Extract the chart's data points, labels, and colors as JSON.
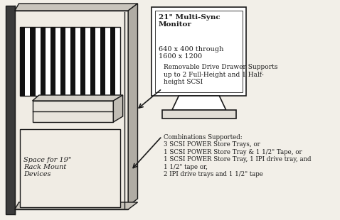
{
  "bg_color": "#f2efe8",
  "monitor_text1": "21\" Multi-Sync\nMonitor",
  "monitor_text2": "640 x 400 through\n1600 x 1200",
  "annotation1": "Removable Drive Drawer Supports\nup to 2 Full-Height and 1 Half-\nheight SCSI",
  "annotation2": "Combinations Supported:\n3 SCSI POWER Store Trays, or\n1 SCSI POWER Store Tray & 1 1/2\" Tape, or\n1 SCSI POWER Store Tray, 1 IPI drive tray, and\n1 1/2\" tape or,\n2 IPI drive trays and 1 1/2\" tape",
  "label_rack": "Space for 19\"\nRack Mount\nDevices",
  "dark": "#1a1a1a",
  "chassis_fill": "#f0ece4",
  "side_fill": "#c8c4bc",
  "vent_dark": "#111111",
  "monitor_fill": "#ffffff",
  "drawer_fill": "#e8e4dc",
  "rack_fill": "#f0ece4"
}
